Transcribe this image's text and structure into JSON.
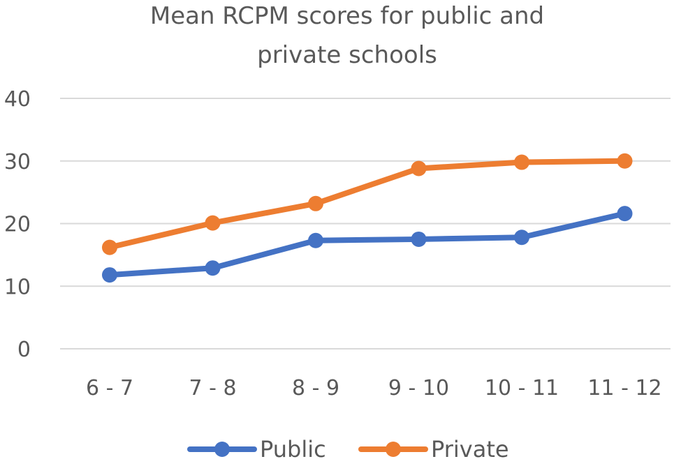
{
  "chart_data": {
    "type": "line",
    "title_lines": [
      "Mean RCPM scores for public and",
      "private schools"
    ],
    "categories": [
      "6 - 7",
      "7 - 8",
      "8 - 9",
      "9 - 10",
      "10 - 11",
      "11 - 12"
    ],
    "series": [
      {
        "name": "Public",
        "color": "#4472c4",
        "values": [
          11.8,
          12.9,
          17.3,
          17.5,
          17.8,
          21.6
        ]
      },
      {
        "name": "Private",
        "color": "#ed7d31",
        "values": [
          16.2,
          20.1,
          23.2,
          28.8,
          29.8,
          30.0
        ]
      }
    ],
    "ylim": [
      0,
      40
    ],
    "yticks": [
      0,
      10,
      20,
      30,
      40
    ],
    "grid": true,
    "legend_position": "bottom"
  }
}
